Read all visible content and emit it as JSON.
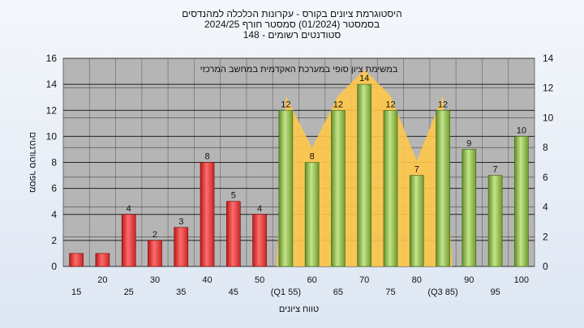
{
  "header": {
    "title_line1": "היסטוגרמת ציונים בקורס - עקרונות הכלכלה למהנדסים",
    "title_line2": "בסמסטר  (01/2024)  סמסטר חורף 2024/25",
    "title_line3": "סטודנטים רשומים - 148"
  },
  "chart_data": {
    "type": "bar",
    "title": "היסטוגרמת ציונים בקורס - עקרונות הכלכלה למהנדסים",
    "annotation": "במשימת ציון סופי במערכת האקדמית במחשב המרכזי",
    "xlabel": "טווח ציונים",
    "ylabel": "מספר סטודנטים",
    "categories": [
      "15",
      "20",
      "25",
      "30",
      "35",
      "40",
      "45",
      "50",
      "(Q1 55)",
      "60",
      "65",
      "70",
      "75",
      "80",
      "(Q3 85)",
      "90",
      "95",
      "100"
    ],
    "values": [
      1,
      1,
      4,
      2,
      3,
      8,
      5,
      4,
      12,
      8,
      12,
      14,
      12,
      7,
      12,
      9,
      7,
      10
    ],
    "labels": [
      "",
      "",
      "4",
      "2",
      "3",
      "8",
      "5",
      "4",
      "12",
      "8",
      "12",
      "14",
      "12",
      "7",
      "12",
      "9",
      "7",
      "10"
    ],
    "groups": [
      "red",
      "red",
      "red",
      "red",
      "red",
      "red",
      "red",
      "red",
      "green",
      "green",
      "green",
      "green",
      "green",
      "green",
      "green",
      "green",
      "green",
      "green"
    ],
    "ylim_left": [
      0,
      16
    ],
    "ylim_right": [
      0,
      14
    ],
    "yticks_left": [
      "0",
      "2",
      "4",
      "6",
      "8",
      "10",
      "12",
      "14",
      "16"
    ],
    "yticks_right": [
      "0",
      "2",
      "4",
      "6",
      "8",
      "10",
      "12",
      "14"
    ],
    "band_start_category": "(Q1 55)",
    "band_end_category": "(Q3 85)",
    "grid": true,
    "colors": {
      "red_bar": "#e53935",
      "green_bar": "#8bc34a",
      "band_fill": "#ffc84a",
      "plot_bg": "#b5b5b5"
    }
  }
}
